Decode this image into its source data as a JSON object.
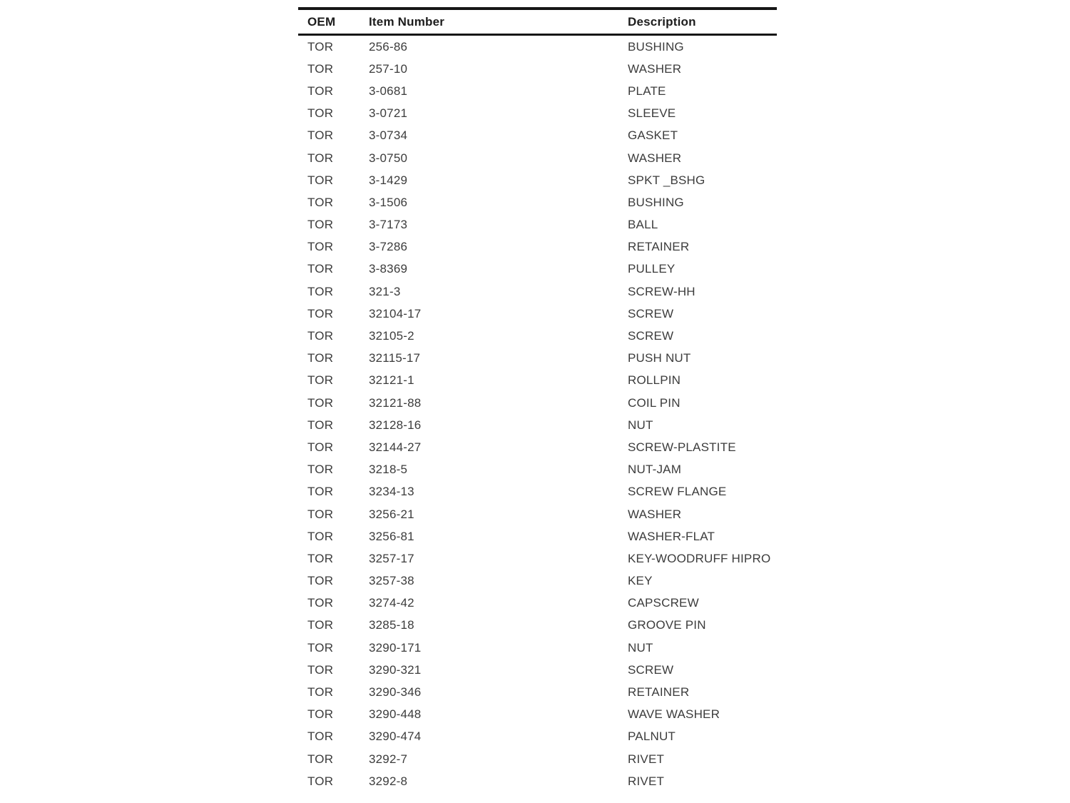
{
  "page": {
    "background_color": "#ffffff",
    "rule_color": "#161616",
    "body_text_color": "#3c3c3c",
    "header_text_color": "#1d1d1d"
  },
  "table": {
    "columns": [
      {
        "key": "oem",
        "label": "OEM"
      },
      {
        "key": "item_number",
        "label": "Item Number"
      },
      {
        "key": "description",
        "label": "Description"
      }
    ],
    "rows": [
      {
        "oem": "TOR",
        "item_number": "256-86",
        "description": "BUSHING"
      },
      {
        "oem": "TOR",
        "item_number": "257-10",
        "description": "WASHER"
      },
      {
        "oem": "TOR",
        "item_number": "3-0681",
        "description": "PLATE"
      },
      {
        "oem": "TOR",
        "item_number": "3-0721",
        "description": "SLEEVE"
      },
      {
        "oem": "TOR",
        "item_number": "3-0734",
        "description": "GASKET"
      },
      {
        "oem": "TOR",
        "item_number": "3-0750",
        "description": "WASHER"
      },
      {
        "oem": "TOR",
        "item_number": "3-1429",
        "description": "SPKT _BSHG"
      },
      {
        "oem": "TOR",
        "item_number": "3-1506",
        "description": "BUSHING"
      },
      {
        "oem": "TOR",
        "item_number": "3-7173",
        "description": "BALL"
      },
      {
        "oem": "TOR",
        "item_number": "3-7286",
        "description": "RETAINER"
      },
      {
        "oem": "TOR",
        "item_number": "3-8369",
        "description": "PULLEY"
      },
      {
        "oem": "TOR",
        "item_number": "321-3",
        "description": "SCREW-HH"
      },
      {
        "oem": "TOR",
        "item_number": "32104-17",
        "description": "SCREW"
      },
      {
        "oem": "TOR",
        "item_number": "32105-2",
        "description": "SCREW"
      },
      {
        "oem": "TOR",
        "item_number": "32115-17",
        "description": "PUSH NUT"
      },
      {
        "oem": "TOR",
        "item_number": "32121-1",
        "description": "ROLLPIN"
      },
      {
        "oem": "TOR",
        "item_number": "32121-88",
        "description": "COIL PIN"
      },
      {
        "oem": "TOR",
        "item_number": "32128-16",
        "description": "NUT"
      },
      {
        "oem": "TOR",
        "item_number": "32144-27",
        "description": "SCREW-PLASTITE"
      },
      {
        "oem": "TOR",
        "item_number": "3218-5",
        "description": "NUT-JAM"
      },
      {
        "oem": "TOR",
        "item_number": "3234-13",
        "description": "SCREW FLANGE"
      },
      {
        "oem": "TOR",
        "item_number": "3256-21",
        "description": "WASHER"
      },
      {
        "oem": "TOR",
        "item_number": "3256-81",
        "description": "WASHER-FLAT"
      },
      {
        "oem": "TOR",
        "item_number": "3257-17",
        "description": "KEY-WOODRUFF HIPRO"
      },
      {
        "oem": "TOR",
        "item_number": "3257-38",
        "description": "KEY"
      },
      {
        "oem": "TOR",
        "item_number": "3274-42",
        "description": "CAPSCREW"
      },
      {
        "oem": "TOR",
        "item_number": "3285-18",
        "description": "GROOVE PIN"
      },
      {
        "oem": "TOR",
        "item_number": "3290-171",
        "description": "NUT"
      },
      {
        "oem": "TOR",
        "item_number": "3290-321",
        "description": "SCREW"
      },
      {
        "oem": "TOR",
        "item_number": "3290-346",
        "description": "RETAINER"
      },
      {
        "oem": "TOR",
        "item_number": "3290-448",
        "description": "WAVE WASHER"
      },
      {
        "oem": "TOR",
        "item_number": "3290-474",
        "description": "PALNUT"
      },
      {
        "oem": "TOR",
        "item_number": "3292-7",
        "description": "RIVET"
      },
      {
        "oem": "TOR",
        "item_number": "3292-8",
        "description": "RIVET"
      }
    ]
  }
}
